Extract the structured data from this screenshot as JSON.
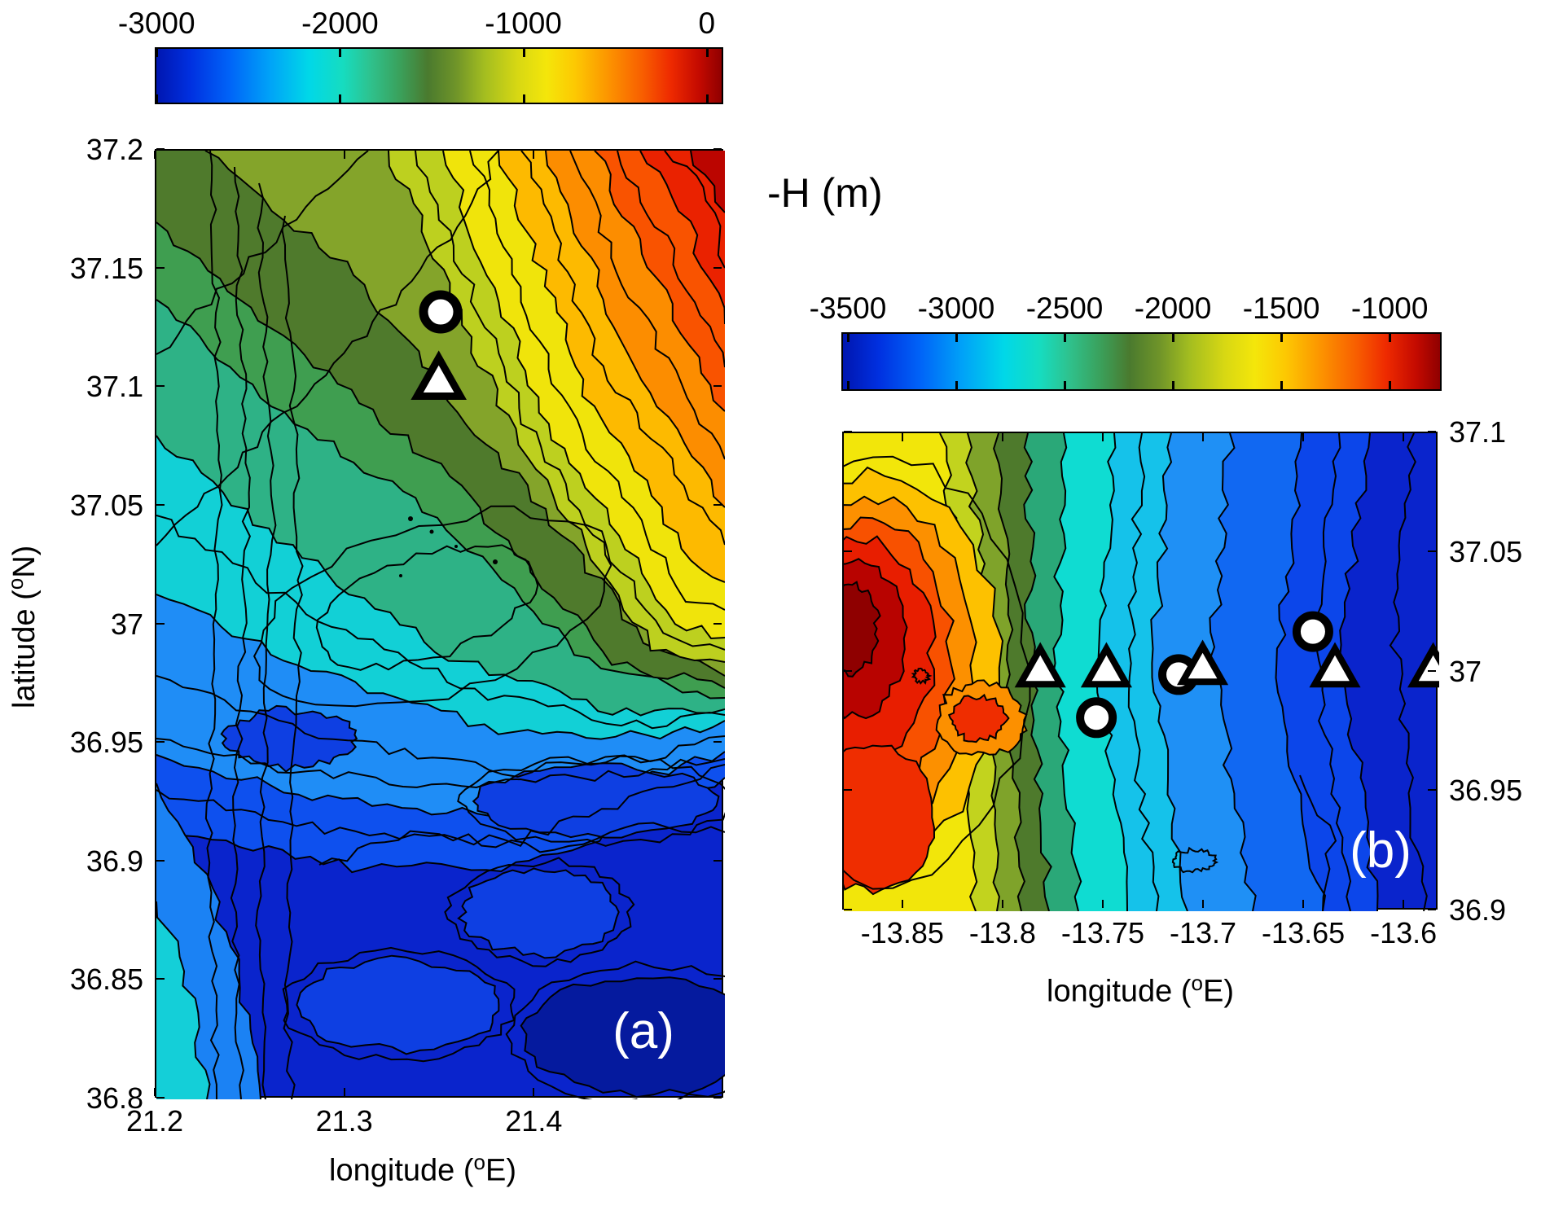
{
  "figure": {
    "title": "-H (m)",
    "description": "Two bathymetry contour maps (depth -H in metres) with jet-style colorbars; white circle and triangle markers show instrument/station sites."
  },
  "axis_labels": {
    "lon_pre": "longitude (",
    "lat_pre": "latitude (",
    "deg": "o",
    "lon_post": "E)",
    "lat_post": "N)"
  },
  "chart_data": [
    {
      "id": "a",
      "type": "heatmap",
      "label": "(a)",
      "xlabel": "longitude (°E)",
      "ylabel": "latitude (°N)",
      "x_range": [
        21.2,
        21.5
      ],
      "y_range": [
        36.8,
        37.2
      ],
      "x_tick_values": [
        21.2,
        21.3,
        21.4
      ],
      "x_tick_labels": [
        "21.2",
        "21.3",
        "21.4"
      ],
      "y_tick_values": [
        37.2,
        37.15,
        37.1,
        37.05,
        37.0,
        36.95,
        36.9,
        36.85,
        36.8
      ],
      "y_tick_labels": [
        "37.2",
        "37.15",
        "37.1",
        "37.05",
        "37",
        "36.95",
        "36.9",
        "36.85",
        "36.8"
      ],
      "y_axis_side": "left",
      "grid": false,
      "colorbar": {
        "orientation": "horizontal",
        "position": "top",
        "range": [
          -3010,
          90
        ],
        "tick_values": [
          -3000,
          -2000,
          -1000,
          0
        ],
        "tick_labels": [
          "-3000",
          "-2000",
          "-1000",
          "0"
        ]
      },
      "markers": {
        "circles": [
          {
            "lon": 21.35,
            "lat": 37.132
          }
        ],
        "triangles": [
          {
            "lon": 21.349,
            "lat": 37.103
          }
        ]
      },
      "field_description": "Shallow red/orange shelf (~-200 m) in NE corner grading SW through yellow and olive slope; teal mid-depth plateau (~-1900 m) in centre; deep dark-blue basin (<-2800 m) across the south; striped trench-like slope along the west edge."
    },
    {
      "id": "b",
      "type": "heatmap",
      "label": "(b)",
      "xlabel": "longitude (°E)",
      "ylabel": "",
      "x_range": [
        -13.88,
        -13.583
      ],
      "y_range": [
        36.9,
        37.1
      ],
      "x_tick_values": [
        -13.85,
        -13.8,
        -13.75,
        -13.7,
        -13.65,
        -13.6
      ],
      "x_tick_labels": [
        "-13.85",
        "-13.8",
        "-13.75",
        "-13.7",
        "-13.65",
        "-13.6"
      ],
      "y_tick_values": [
        37.1,
        37.05,
        37.0,
        36.95,
        36.9
      ],
      "y_tick_labels": [
        "37.1",
        "37.05",
        "37",
        "36.95",
        "36.9"
      ],
      "y_axis_side": "right",
      "grid": false,
      "colorbar": {
        "orientation": "horizontal",
        "position": "top",
        "range": [
          -3530,
          -760
        ],
        "tick_values": [
          -3500,
          -3000,
          -2500,
          -2000,
          -1500,
          -1000
        ],
        "tick_labels": [
          "-3500",
          "-3000",
          "-2500",
          "-2000",
          "-1500",
          "-1000"
        ]
      },
      "markers": {
        "circles": [
          {
            "lon": -13.713,
            "lat": 36.999
          },
          {
            "lon": -13.646,
            "lat": 37.017
          },
          {
            "lon": -13.754,
            "lat": 36.981
          }
        ],
        "triangles": [
          {
            "lon": -13.782,
            "lat": 37.001
          },
          {
            "lon": -13.749,
            "lat": 37.001
          },
          {
            "lon": -13.701,
            "lat": 37.002
          },
          {
            "lon": -13.635,
            "lat": 37.001
          },
          {
            "lon": -13.586,
            "lat": 37.001
          }
        ]
      },
      "field_description": "Seamount summit (dark red, ~-800 m) at the west edge with concentric orange/yellow/green rings; depth increases eastward through cyan to deep blue (~-3500 m) at the east edge."
    }
  ],
  "colormap_stops": [
    [
      0.0,
      "#0016b0"
    ],
    [
      0.06,
      "#0030e0"
    ],
    [
      0.13,
      "#0064f8"
    ],
    [
      0.2,
      "#00a2f8"
    ],
    [
      0.27,
      "#00d8e8"
    ],
    [
      0.33,
      "#16dcc0"
    ],
    [
      0.38,
      "#2fc18c"
    ],
    [
      0.43,
      "#3aa15c"
    ],
    [
      0.48,
      "#4a7a2e"
    ],
    [
      0.53,
      "#6f9429"
    ],
    [
      0.58,
      "#a3bd20"
    ],
    [
      0.64,
      "#d8d813"
    ],
    [
      0.69,
      "#f4e60a"
    ],
    [
      0.74,
      "#fdc902"
    ],
    [
      0.8,
      "#fc9400"
    ],
    [
      0.86,
      "#f85e00"
    ],
    [
      0.91,
      "#ee2a00"
    ],
    [
      0.96,
      "#c40a00"
    ],
    [
      1.0,
      "#8f0000"
    ]
  ]
}
